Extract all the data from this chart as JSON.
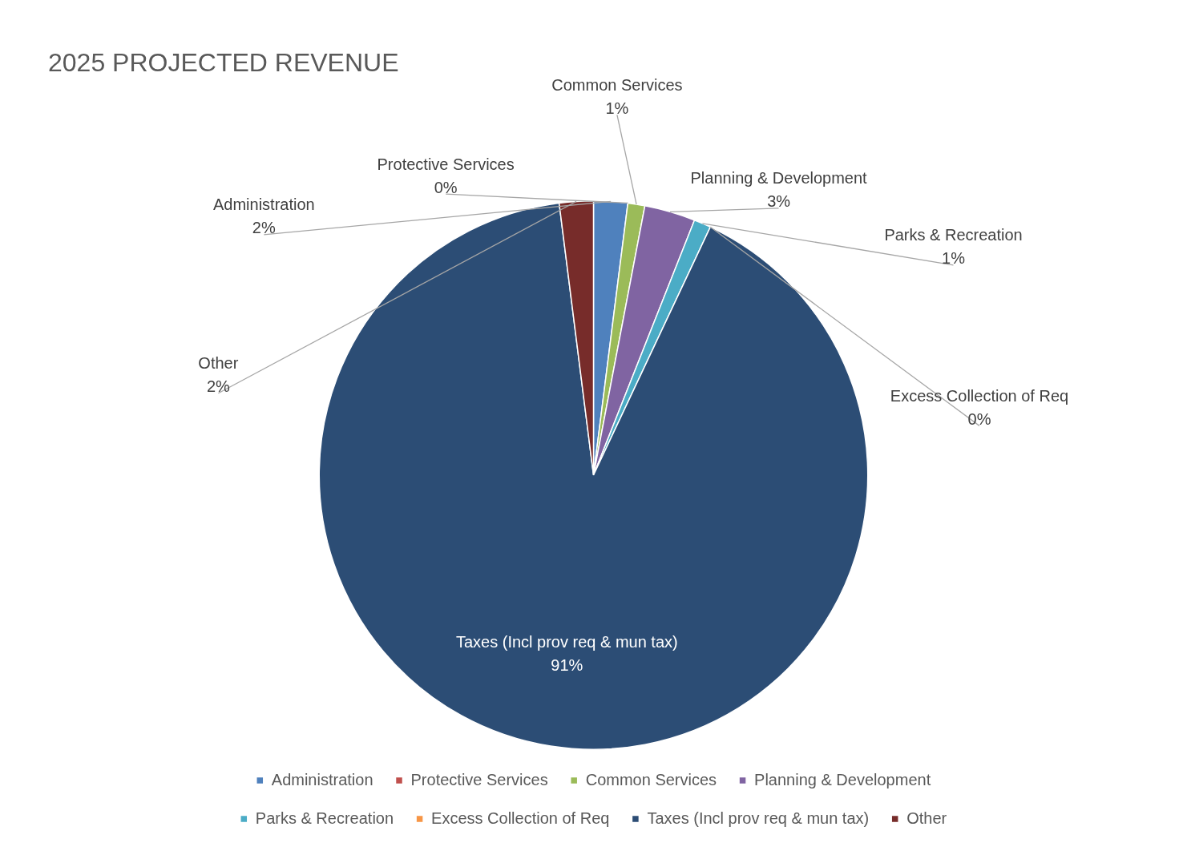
{
  "chart_data": {
    "type": "pie",
    "title": "2025 PROJECTED REVENUE",
    "categories": [
      "Administration",
      "Protective Services",
      "Common Services",
      "Planning & Development",
      "Parks & Recreation",
      "Excess Collection of Req",
      "Taxes (Incl prov req & mun tax)",
      "Other"
    ],
    "values": [
      2,
      0,
      1,
      3,
      1,
      0,
      91,
      2
    ],
    "value_labels": [
      "2%",
      "0%",
      "1%",
      "3%",
      "1%",
      "0%",
      "91%",
      "2%"
    ],
    "colors": [
      "#4f81bd",
      "#c0504d",
      "#9bbb59",
      "#8064a2",
      "#4bacc6",
      "#f79646",
      "#2c4d75",
      "#772c2a"
    ],
    "legend": "bottom"
  }
}
